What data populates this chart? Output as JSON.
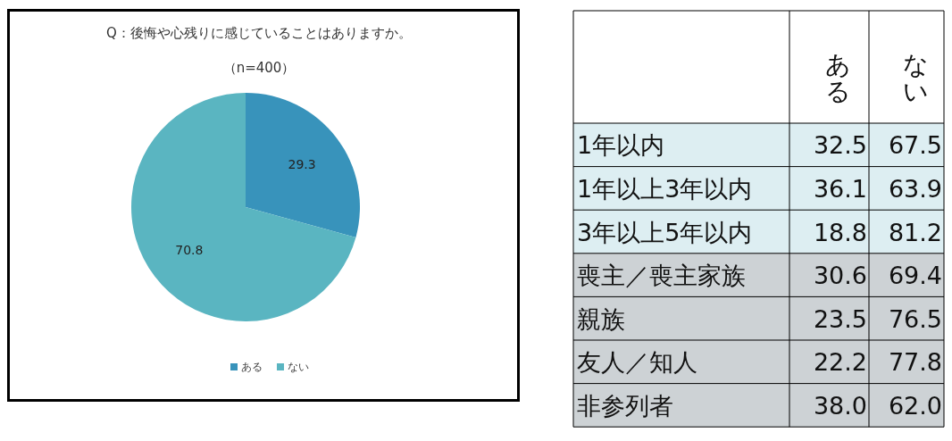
{
  "chart_data": [
    {
      "type": "pie",
      "title": "Q：後悔や心残りに感じていることはありますか。",
      "subtitle": "（n=400）",
      "categories": [
        "ある",
        "ない"
      ],
      "values": [
        29.3,
        70.8
      ],
      "colors": [
        "#3893bb",
        "#5ab5c1"
      ],
      "data_labels": true,
      "legend": "bottom"
    },
    {
      "type": "heatmap",
      "categories": [
        "ある",
        "ない"
      ],
      "y_categories": [
        "1年以内",
        "1年以上3年以内",
        "3年以上5年以内",
        "喪主／喪主家族",
        "親族",
        "友人／知人",
        "非参列者"
      ],
      "cells": [
        [
          32.5,
          67.5
        ],
        [
          36.1,
          63.9
        ],
        [
          18.8,
          81.2
        ],
        [
          30.6,
          69.4
        ],
        [
          23.5,
          76.5
        ],
        [
          22.2,
          77.8
        ],
        [
          38.0,
          62.0
        ]
      ],
      "cell_labels": [
        [
          "32.5",
          "67.5"
        ],
        [
          "36.1",
          "63.9"
        ],
        [
          "18.8",
          "81.2"
        ],
        [
          "30.6",
          "69.4"
        ],
        [
          "23.5",
          "76.5"
        ],
        [
          "22.2",
          "77.8"
        ],
        [
          "38.0",
          "62.0"
        ]
      ],
      "data_labels": true
    }
  ]
}
